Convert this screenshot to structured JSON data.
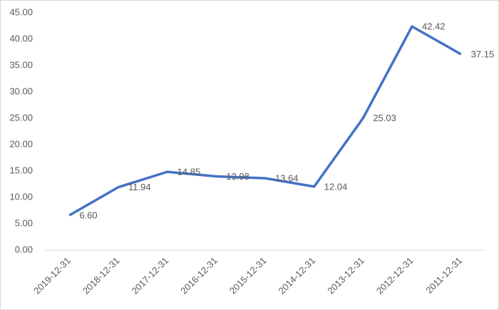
{
  "chart_data": {
    "type": "line",
    "categories": [
      "2019-12-31",
      "2018-12-31",
      "2017-12-31",
      "2016-12-31",
      "2015-12-31",
      "2014-12-31",
      "2013-12-31",
      "2012-12-31",
      "2011-12-31"
    ],
    "values": [
      6.6,
      11.94,
      14.85,
      13.98,
      13.64,
      12.04,
      25.03,
      42.42,
      37.15
    ],
    "value_labels": [
      "6.60",
      "11.94",
      "14.85",
      "13.98",
      "13.64",
      "12.04",
      "25.03",
      "42.42",
      "37.15"
    ],
    "color": "#4472c4",
    "ylim": [
      0,
      45
    ],
    "yticks": [
      {
        "value": 0,
        "label": "0.00"
      },
      {
        "value": 5,
        "label": "5.00"
      },
      {
        "value": 10,
        "label": "10.00"
      },
      {
        "value": 15,
        "label": "15.00"
      },
      {
        "value": 20,
        "label": "20.00"
      },
      {
        "value": 25,
        "label": "25.00"
      },
      {
        "value": 30,
        "label": "30.00"
      },
      {
        "value": 35,
        "label": "35.00"
      },
      {
        "value": 40,
        "label": "40.00"
      },
      {
        "value": 45,
        "label": "45.00"
      }
    ],
    "grid": false
  }
}
